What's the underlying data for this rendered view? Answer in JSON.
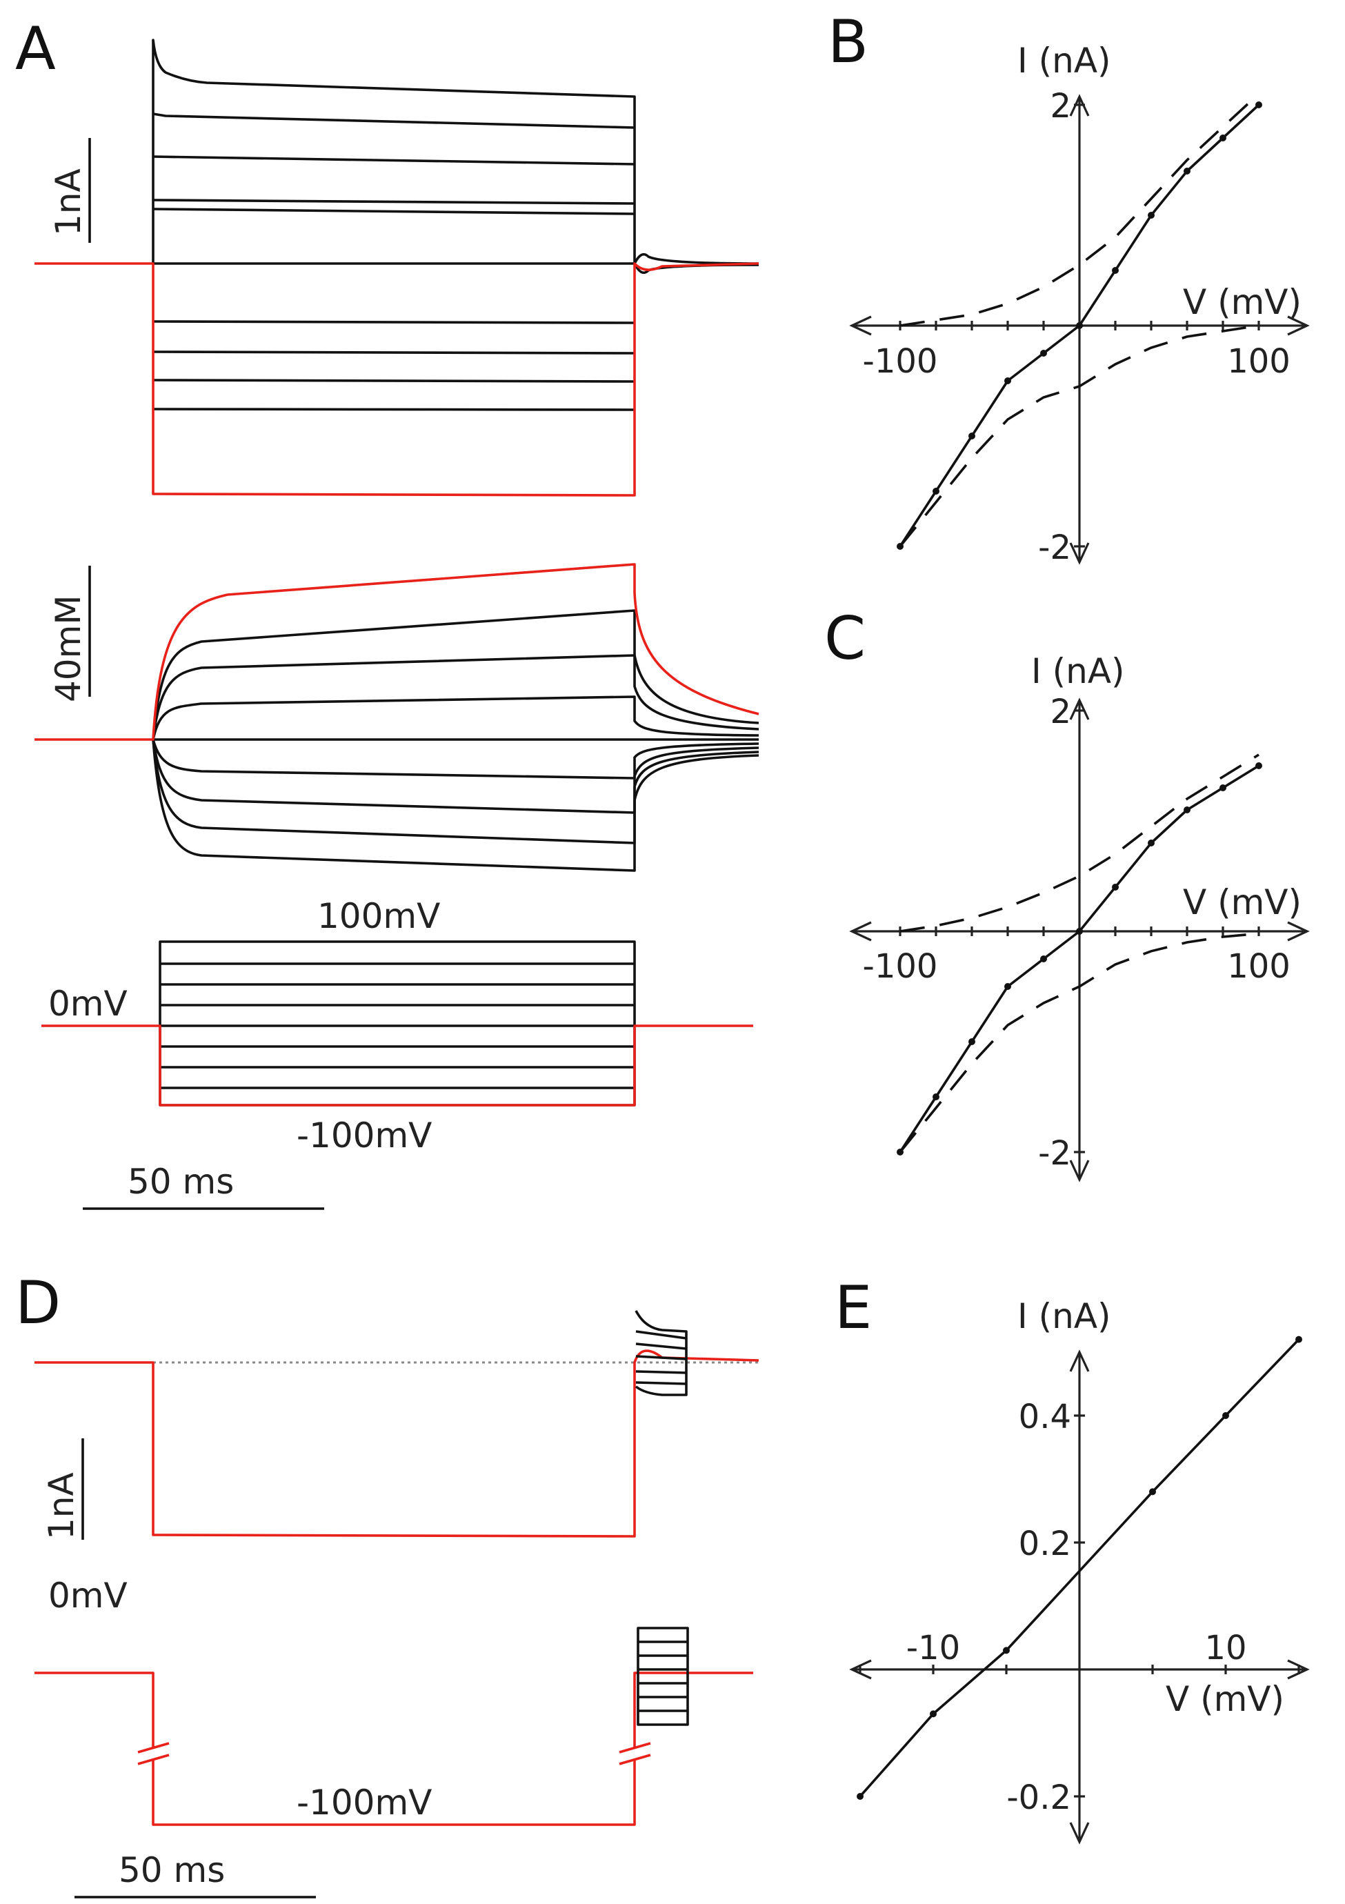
{
  "panels": {
    "A": {
      "label": "A",
      "current_scale": "1nA",
      "conc_scale": "40mM",
      "v_hold": "0mV",
      "v_max": "100mV",
      "v_min": "-100mV",
      "time_scale": "50 ms"
    },
    "B": {
      "label": "B"
    },
    "C": {
      "label": "C"
    },
    "D": {
      "label": "D",
      "current_scale": "1nA",
      "v_hold": "0mV",
      "v_step": "-100mV",
      "time_scale": "50 ms"
    },
    "E": {
      "label": "E"
    }
  },
  "colors": {
    "trace": "#111111",
    "highlight": "#e8221a"
  },
  "chart_data": [
    {
      "id": "B",
      "type": "line",
      "xlabel": "V (mV)",
      "ylabel": "I (nA)",
      "xlim": [
        -100,
        100
      ],
      "ylim": [
        -2,
        2
      ],
      "x_ticks": [
        -100,
        100
      ],
      "y_ticks": [
        -2,
        2
      ],
      "series": [
        {
          "style": "solid-markers",
          "x": [
            -100,
            -80,
            -60,
            -40,
            -20,
            0,
            20,
            40,
            60,
            80,
            100
          ],
          "y": [
            -2.0,
            -1.5,
            -1.0,
            -0.5,
            -0.25,
            0,
            0.5,
            1.0,
            1.4,
            1.7,
            2.0
          ]
        },
        {
          "style": "dashed",
          "x": [
            -100,
            -80,
            -60,
            -40,
            -20,
            0,
            20,
            40,
            60,
            80,
            100
          ],
          "y": [
            -2.0,
            -1.6,
            -1.2,
            -0.85,
            -0.65,
            -0.55,
            -0.35,
            -0.2,
            -0.1,
            -0.05,
            0.0
          ]
        },
        {
          "style": "dashed",
          "x": [
            -100,
            -80,
            -60,
            -40,
            -20,
            0,
            20,
            40,
            60,
            80,
            100
          ],
          "y": [
            0,
            0.05,
            0.1,
            0.2,
            0.35,
            0.55,
            0.8,
            1.15,
            1.5,
            1.8,
            2.1
          ]
        }
      ]
    },
    {
      "id": "C",
      "type": "line",
      "xlabel": "V (mV)",
      "ylabel": "I (nA)",
      "xlim": [
        -100,
        100
      ],
      "ylim": [
        -2,
        2
      ],
      "x_ticks": [
        -100,
        100
      ],
      "y_ticks": [
        -2,
        2
      ],
      "series": [
        {
          "style": "solid-markers",
          "x": [
            -100,
            -80,
            -60,
            -40,
            -20,
            0,
            20,
            40,
            60,
            80,
            100
          ],
          "y": [
            -2.0,
            -1.5,
            -1.0,
            -0.5,
            -0.25,
            0,
            0.4,
            0.8,
            1.1,
            1.3,
            1.5
          ]
        },
        {
          "style": "dashed",
          "x": [
            -100,
            -80,
            -60,
            -40,
            -20,
            0,
            20,
            40,
            60,
            80,
            100
          ],
          "y": [
            -2.0,
            -1.6,
            -1.2,
            -0.85,
            -0.65,
            -0.5,
            -0.3,
            -0.18,
            -0.1,
            -0.05,
            -0.02
          ]
        },
        {
          "style": "dashed",
          "x": [
            -100,
            -80,
            -60,
            -40,
            -20,
            0,
            20,
            40,
            60,
            80,
            100
          ],
          "y": [
            0,
            0.05,
            0.12,
            0.22,
            0.35,
            0.5,
            0.7,
            0.95,
            1.2,
            1.4,
            1.6
          ]
        }
      ]
    },
    {
      "id": "E",
      "type": "line",
      "xlabel": "V (mV)",
      "ylabel": "I (nA)",
      "xlim": [
        -15,
        15
      ],
      "ylim": [
        -0.25,
        0.6
      ],
      "x_ticks": [
        -10,
        10
      ],
      "y_ticks": [
        -0.2,
        0.2,
        0.4
      ],
      "series": [
        {
          "style": "solid-markers",
          "x": [
            -15,
            -10,
            -5,
            5,
            10,
            15
          ],
          "y": [
            -0.2,
            -0.07,
            0.03,
            0.28,
            0.4,
            0.52
          ]
        }
      ]
    }
  ]
}
